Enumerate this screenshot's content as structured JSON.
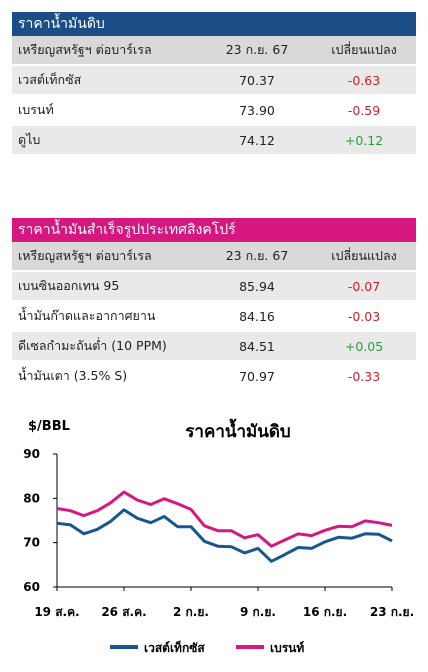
{
  "crude_table": {
    "title": "ราคาน้ำมันดิบ",
    "header": [
      "เหรียญสหรัฐฯ ต่อบาร์เรล",
      "23 ก.ย. 67",
      "เปลี่ยนแปลง"
    ],
    "rows": [
      {
        "name": "เวสต์เท็กซัส",
        "price": "70.37",
        "change": "-0.63"
      },
      {
        "name": "เบรนท์",
        "price": "73.90",
        "change": "-0.59"
      },
      {
        "name": "ดูไบ",
        "price": "74.12",
        "change": "+0.12"
      }
    ]
  },
  "sing_table": {
    "title": "ราคาน้ำมันสำเร็จรูปประเทศสิงคโปร์",
    "header": [
      "เหรียญสหรัฐฯ ต่อบาร์เรล",
      "23 ก.ย. 67",
      "เปลี่ยนแปลง"
    ],
    "rows": [
      {
        "name": "เบนซินออกเทน 95",
        "price": "85.94",
        "change": "-0.07"
      },
      {
        "name": "น้ำมันก๊าดและอากาศยาน",
        "price": "84.16",
        "change": "-0.03"
      },
      {
        "name": "ดีเซลกำมะถันต่ำ (10 PPM)",
        "price": "84.51",
        "change": "+0.05"
      },
      {
        "name": "น้ำมันเตา (3.5% S)",
        "price": "70.97",
        "change": "-0.33"
      }
    ]
  },
  "colors": {
    "wti": "#17578f",
    "brent": "#d6177f",
    "positive": "#2a9d3a",
    "negative": "#d0202a"
  },
  "chart_data": {
    "type": "line",
    "title": "ราคาน้ำมันดิบ",
    "ylabel": "$/BBL",
    "ylim": [
      60,
      90
    ],
    "yticks": [
      60,
      70,
      80,
      90
    ],
    "xlim": [
      "19 ส.ค.",
      "23 ก.ย."
    ],
    "x_tick_labels": [
      "19 ส.ค.",
      "26 ส.ค.",
      "2 ก.ย.",
      "9 ก.ย.",
      "16 ก.ย.",
      "23 ก.ย."
    ],
    "x": [
      "19 ส.ค.",
      "20 ส.ค.",
      "21 ส.ค.",
      "22 ส.ค.",
      "23 ส.ค.",
      "26 ส.ค.",
      "27 ส.ค.",
      "28 ส.ค.",
      "29 ส.ค.",
      "30 ส.ค.",
      "2 ก.ย.",
      "3 ก.ย.",
      "4 ก.ย.",
      "5 ก.ย.",
      "6 ก.ย.",
      "9 ก.ย.",
      "10 ก.ย.",
      "11 ก.ย.",
      "12 ก.ย.",
      "13 ก.ย.",
      "16 ก.ย.",
      "17 ก.ย.",
      "18 ก.ย.",
      "19 ก.ย.",
      "20 ก.ย.",
      "23 ก.ย."
    ],
    "series": [
      {
        "name": "เวสต์เท็กซัส",
        "values": [
          74.4,
          74.0,
          72.0,
          73.0,
          74.8,
          77.4,
          75.5,
          74.5,
          75.9,
          73.6,
          73.6,
          70.3,
          69.2,
          69.1,
          67.7,
          68.7,
          65.8,
          67.3,
          68.9,
          68.7,
          70.2,
          71.2,
          71.0,
          72.0,
          71.9,
          70.4
        ]
      },
      {
        "name": "เบรนท์",
        "values": [
          77.7,
          77.2,
          76.1,
          77.2,
          79.0,
          81.4,
          79.6,
          78.6,
          79.9,
          78.8,
          77.5,
          73.8,
          72.7,
          72.7,
          71.1,
          71.8,
          69.2,
          70.6,
          72.0,
          71.6,
          72.8,
          73.7,
          73.6,
          74.9,
          74.5,
          73.9
        ]
      }
    ],
    "legend": "bottom"
  }
}
